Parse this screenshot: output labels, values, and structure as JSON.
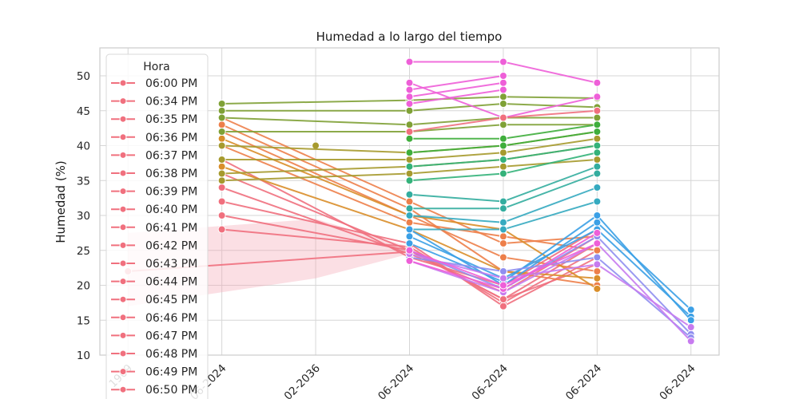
{
  "chart_data": {
    "type": "line",
    "title": "Humedad a lo largo del tiempo",
    "xlabel": "",
    "ylabel": "Humedad (%)",
    "ylim": [
      10,
      54
    ],
    "y_ticks": [
      10,
      15,
      20,
      25,
      30,
      35,
      40,
      45,
      50
    ],
    "x_ticks": [
      "1969",
      "...06-2024",
      "...02-2036",
      "...06-2024",
      "...06-2024",
      "...06-2024",
      "...06-2024"
    ],
    "grid": true,
    "legend": {
      "title": "Hora",
      "placement": "upper-left",
      "entries": [
        "06:00 PM",
        "06:34 PM",
        "06:35 PM",
        "06:36 PM",
        "06:37 PM",
        "06:38 PM",
        "06:39 PM",
        "06:40 PM",
        "06:41 PM",
        "06:42 PM",
        "06:43 PM",
        "06:44 PM",
        "06:45 PM",
        "06:46 PM",
        "06:47 PM",
        "06:48 PM",
        "06:49 PM",
        "06:50 PM"
      ]
    },
    "palette": [
      "#f0707e",
      "#ed7f4a",
      "#d98e2a",
      "#a69a2e",
      "#7fa136",
      "#3fae3c",
      "#34b27a",
      "#33ad9f",
      "#35aac0",
      "#3ba0e6",
      "#8f8ef0",
      "#c77bef",
      "#ee5fd8"
    ],
    "x_positions": [
      0,
      1,
      2,
      3,
      4,
      5,
      6
    ],
    "x_range": [
      -0.3,
      6.3
    ],
    "ci_band": {
      "x": [
        0,
        2,
        3
      ],
      "upper": [
        27.5,
        29.5,
        25.5
      ],
      "lower": [
        17,
        21,
        24.5
      ],
      "color": "#f4a2b2"
    },
    "series": [
      {
        "color": "#f0707e",
        "x": [
          0,
          3
        ],
        "y": [
          22,
          24.8
        ]
      },
      {
        "color": "#a69a2e",
        "x": [
          2
        ],
        "y": [
          40
        ]
      },
      {
        "color": "#f0707e",
        "x": [
          1,
          3,
          4,
          5
        ],
        "y": [
          28,
          25.5,
          17.5,
          25
        ]
      },
      {
        "color": "#f0707e",
        "x": [
          1,
          3,
          4,
          5
        ],
        "y": [
          30,
          25,
          18,
          26
        ]
      },
      {
        "color": "#f0707e",
        "x": [
          1,
          3,
          4,
          5
        ],
        "y": [
          32,
          26,
          17,
          24
        ]
      },
      {
        "color": "#f0707e",
        "x": [
          1,
          3,
          4,
          5
        ],
        "y": [
          34,
          24.5,
          19,
          27
        ]
      },
      {
        "color": "#f0707e",
        "x": [
          1,
          3,
          4,
          5
        ],
        "y": [
          36,
          25,
          18,
          23
        ]
      },
      {
        "color": "#f0707e",
        "x": [
          1,
          3,
          4,
          5
        ],
        "y": [
          38,
          24,
          20,
          28
        ]
      },
      {
        "color": "#ed7f4a",
        "x": [
          1,
          3,
          4,
          5
        ],
        "y": [
          43,
          31,
          22,
          20
        ]
      },
      {
        "color": "#ed7f4a",
        "x": [
          1,
          3,
          4,
          5
        ],
        "y": [
          42,
          30,
          24,
          22
        ]
      },
      {
        "color": "#ed7f4a",
        "x": [
          1,
          3,
          4,
          5
        ],
        "y": [
          40,
          29,
          27,
          25
        ]
      },
      {
        "color": "#ed7f4a",
        "x": [
          1,
          3,
          4,
          5
        ],
        "y": [
          44,
          32,
          26,
          27
        ]
      },
      {
        "color": "#d98e2a",
        "x": [
          1,
          3,
          4,
          5
        ],
        "y": [
          41,
          30,
          28,
          19.5
        ]
      },
      {
        "color": "#d98e2a",
        "x": [
          1,
          3,
          4,
          5
        ],
        "y": [
          37,
          28,
          22,
          21
        ]
      },
      {
        "color": "#a69a2e",
        "x": [
          1,
          3,
          4,
          5
        ],
        "y": [
          35,
          36,
          37,
          38
        ]
      },
      {
        "color": "#a69a2e",
        "x": [
          1,
          3,
          4,
          5
        ],
        "y": [
          36,
          37,
          38,
          40
        ]
      },
      {
        "color": "#a69a2e",
        "x": [
          1,
          3,
          4,
          5
        ],
        "y": [
          38,
          38,
          39,
          41
        ]
      },
      {
        "color": "#a69a2e",
        "x": [
          1,
          3,
          4,
          5
        ],
        "y": [
          40,
          39,
          40,
          42
        ]
      },
      {
        "color": "#7fa136",
        "x": [
          1,
          3,
          4,
          5
        ],
        "y": [
          46,
          46.5,
          47,
          46.8
        ]
      },
      {
        "color": "#7fa136",
        "x": [
          1,
          3,
          4,
          5
        ],
        "y": [
          45,
          45,
          46,
          45.5
        ]
      },
      {
        "color": "#7fa136",
        "x": [
          1,
          3,
          4,
          5
        ],
        "y": [
          44,
          43,
          44,
          44
        ]
      },
      {
        "color": "#7fa136",
        "x": [
          1,
          3,
          4,
          5
        ],
        "y": [
          42,
          42,
          43,
          43
        ]
      },
      {
        "color": "#3fae3c",
        "x": [
          3,
          4,
          5
        ],
        "y": [
          41,
          41,
          43
        ]
      },
      {
        "color": "#3fae3c",
        "x": [
          3,
          4,
          5
        ],
        "y": [
          39,
          40,
          42
        ]
      },
      {
        "color": "#34b27a",
        "x": [
          3,
          4,
          5
        ],
        "y": [
          37,
          38,
          40
        ]
      },
      {
        "color": "#34b27a",
        "x": [
          3,
          4,
          5
        ],
        "y": [
          35,
          36,
          39
        ]
      },
      {
        "color": "#33ad9f",
        "x": [
          3,
          4,
          5
        ],
        "y": [
          33,
          32,
          37
        ]
      },
      {
        "color": "#33ad9f",
        "x": [
          3,
          4,
          5
        ],
        "y": [
          31,
          31,
          36
        ]
      },
      {
        "color": "#35aac0",
        "x": [
          3,
          4,
          5
        ],
        "y": [
          30,
          29,
          34
        ]
      },
      {
        "color": "#35aac0",
        "x": [
          3,
          4,
          5
        ],
        "y": [
          28,
          28,
          32
        ]
      },
      {
        "color": "#3ba0e6",
        "x": [
          3,
          4,
          5,
          6
        ],
        "y": [
          28,
          20,
          29,
          16.5
        ]
      },
      {
        "color": "#3ba0e6",
        "x": [
          3,
          4,
          5,
          6
        ],
        "y": [
          27,
          21,
          28,
          15.5
        ]
      },
      {
        "color": "#3ba0e6",
        "x": [
          3,
          4,
          5,
          6
        ],
        "y": [
          26,
          20.5,
          30,
          15
        ]
      },
      {
        "color": "#8f8ef0",
        "x": [
          3,
          4,
          5,
          6
        ],
        "y": [
          25,
          19.5,
          27,
          13
        ]
      },
      {
        "color": "#8f8ef0",
        "x": [
          3,
          4,
          5,
          6
        ],
        "y": [
          24,
          22,
          24,
          12.5
        ]
      },
      {
        "color": "#c77bef",
        "x": [
          3,
          4,
          5,
          6
        ],
        "y": [
          23.5,
          19,
          26,
          12
        ]
      },
      {
        "color": "#c77bef",
        "x": [
          3,
          4,
          5,
          6
        ],
        "y": [
          24.5,
          21,
          23,
          14
        ]
      },
      {
        "color": "#ee5fd8",
        "x": [
          3,
          4,
          5
        ],
        "y": [
          23.5,
          19.5,
          27.5
        ]
      },
      {
        "color": "#ee5fd8",
        "x": [
          3,
          4,
          5
        ],
        "y": [
          25,
          20,
          26
        ]
      },
      {
        "color": "#ee5fd8",
        "x": [
          3,
          4
        ],
        "y": [
          46,
          48
        ]
      },
      {
        "color": "#ee5fd8",
        "x": [
          3,
          4
        ],
        "y": [
          47,
          49
        ]
      },
      {
        "color": "#ee5fd8",
        "x": [
          3,
          4
        ],
        "y": [
          48,
          50
        ]
      },
      {
        "color": "#ee5fd8",
        "x": [
          3,
          4,
          5
        ],
        "y": [
          52,
          52,
          49
        ]
      },
      {
        "color": "#ee5fd8",
        "x": [
          3,
          4,
          5
        ],
        "y": [
          49,
          44,
          47
        ]
      },
      {
        "color": "#f0707e",
        "x": [
          3,
          4,
          5
        ],
        "y": [
          42,
          44,
          45
        ]
      }
    ]
  }
}
